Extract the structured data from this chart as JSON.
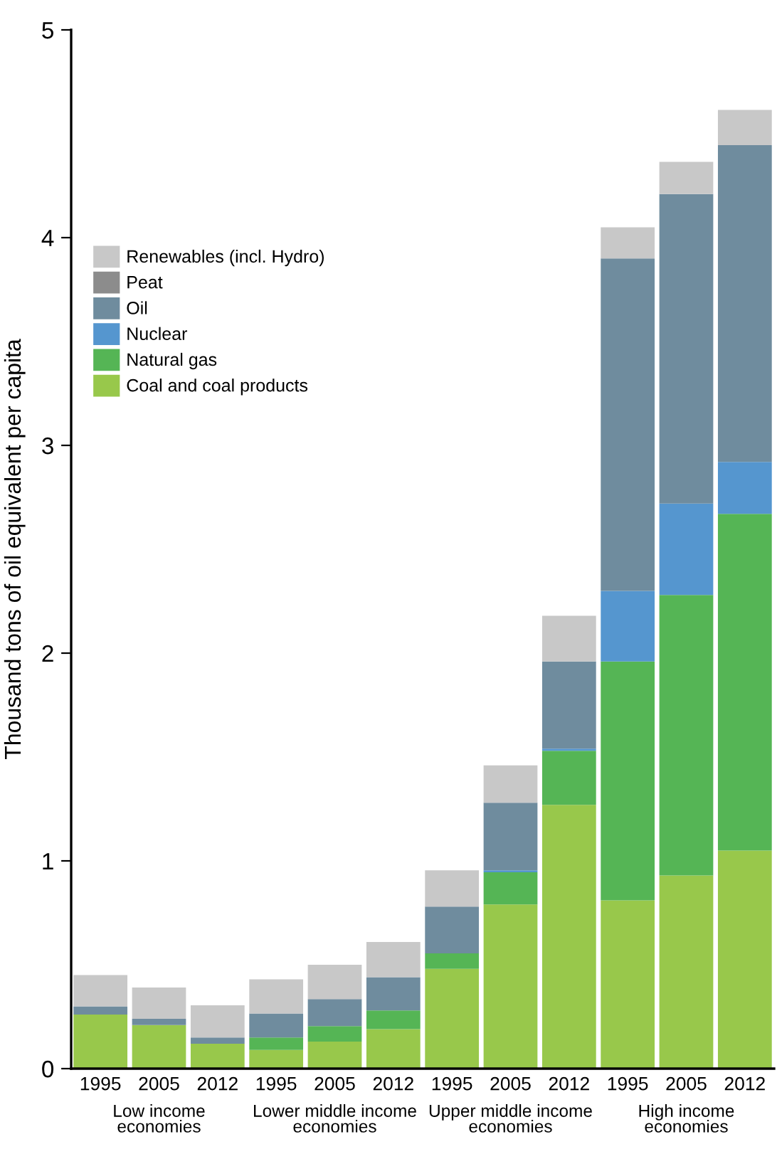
{
  "chart_data": {
    "type": "bar",
    "stacked": true,
    "ylabel": "Thousand tons of oil equivalent per capita",
    "categories": [
      "1995",
      "2005",
      "2012",
      "1995",
      "2005",
      "2012",
      "1995",
      "2005",
      "2012",
      "1995",
      "2005",
      "2012"
    ],
    "series": [
      {
        "name": "Coal and coal products",
        "color": "#98c84b",
        "values": [
          0.26,
          0.21,
          0.12,
          0.09,
          0.13,
          0.19,
          0.48,
          0.79,
          1.27,
          0.81,
          0.93,
          1.05
        ]
      },
      {
        "name": "Natural gas",
        "color": "#55b555",
        "values": [
          0,
          0,
          0,
          0.06,
          0.075,
          0.09,
          0.075,
          0.155,
          0.26,
          1.15,
          1.35,
          1.62
        ]
      },
      {
        "name": "Nuclear",
        "color": "#5596cf",
        "values": [
          0,
          0,
          0,
          0,
          0,
          0,
          0,
          0.01,
          0.01,
          0.34,
          0.44,
          0.25
        ]
      },
      {
        "name": "Oil",
        "color": "#6f8c9e",
        "values": [
          0.04,
          0.03,
          0.03,
          0.115,
          0.13,
          0.16,
          0.225,
          0.325,
          0.42,
          1.6,
          1.49,
          1.525
        ]
      },
      {
        "name": "Peat",
        "color": "#8c8c8c",
        "values": [
          0,
          0,
          0,
          0,
          0,
          0,
          0,
          0,
          0,
          0,
          0,
          0
        ]
      },
      {
        "name": "Renewables (incl. Hydro)",
        "color": "#c8c8c8",
        "values": [
          0.15,
          0.15,
          0.155,
          0.165,
          0.165,
          0.17,
          0.175,
          0.18,
          0.22,
          0.15,
          0.155,
          0.17
        ]
      }
    ],
    "annotations": [
      "Low income\neconomies",
      "Lower middle income\neconomies",
      "Upper middle income\neconomies",
      "High income\neconomies"
    ],
    "ylim": [
      0,
      5
    ],
    "yticks": [
      0,
      1,
      2,
      3,
      4,
      5
    ],
    "grid": false,
    "legend": "upper left"
  }
}
